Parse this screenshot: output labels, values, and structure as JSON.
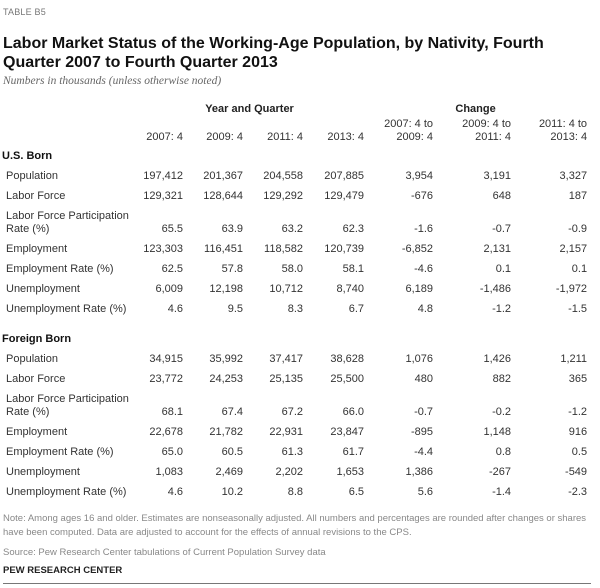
{
  "table_label": "TABLE B5",
  "title": "Labor Market Status of the Working-Age Population, by Nativity, Fourth Quarter 2007 to Fourth Quarter 2013",
  "subtitle": "Numbers in thousands (unless otherwise noted)",
  "group_headers": {
    "year": "Year and Quarter",
    "change": "Change"
  },
  "columns": [
    "2007: 4",
    "2009: 4",
    "2011: 4",
    "2013: 4",
    "2007: 4 to 2009: 4",
    "2009: 4 to 2011: 4",
    "2011: 4 to 2013: 4"
  ],
  "sections": [
    {
      "name": "U.S. Born",
      "rows": [
        {
          "label": "Population",
          "values": [
            "197,412",
            "201,367",
            "204,558",
            "207,885",
            "3,954",
            "3,191",
            "3,327"
          ]
        },
        {
          "label": "Labor Force",
          "values": [
            "129,321",
            "128,644",
            "129,292",
            "129,479",
            "-676",
            "648",
            "187"
          ]
        },
        {
          "label": "Labor Force Participation Rate (%)",
          "values": [
            "65.5",
            "63.9",
            "63.2",
            "62.3",
            "-1.6",
            "-0.7",
            "-0.9"
          ]
        },
        {
          "label": "Employment",
          "values": [
            "123,303",
            "116,451",
            "118,582",
            "120,739",
            "-6,852",
            "2,131",
            "2,157"
          ]
        },
        {
          "label": "Employment Rate (%)",
          "values": [
            "62.5",
            "57.8",
            "58.0",
            "58.1",
            "-4.6",
            "0.1",
            "0.1"
          ]
        },
        {
          "label": "Unemployment",
          "values": [
            "6,009",
            "12,198",
            "10,712",
            "8,740",
            "6,189",
            "-1,486",
            "-1,972"
          ]
        },
        {
          "label": "Unemployment Rate (%)",
          "values": [
            "4.6",
            "9.5",
            "8.3",
            "6.7",
            "4.8",
            "-1.2",
            "-1.5"
          ]
        }
      ]
    },
    {
      "name": "Foreign Born",
      "rows": [
        {
          "label": "Population",
          "values": [
            "34,915",
            "35,992",
            "37,417",
            "38,628",
            "1,076",
            "1,426",
            "1,211"
          ]
        },
        {
          "label": "Labor Force",
          "values": [
            "23,772",
            "24,253",
            "25,135",
            "25,500",
            "480",
            "882",
            "365"
          ]
        },
        {
          "label": "Labor Force Participation Rate (%)",
          "values": [
            "68.1",
            "67.4",
            "67.2",
            "66.0",
            "-0.7",
            "-0.2",
            "-1.2"
          ]
        },
        {
          "label": "Employment",
          "values": [
            "22,678",
            "21,782",
            "22,931",
            "23,847",
            "-895",
            "1,148",
            "916"
          ]
        },
        {
          "label": "Employment Rate (%)",
          "values": [
            "65.0",
            "60.5",
            "61.3",
            "61.7",
            "-4.4",
            "0.8",
            "0.5"
          ]
        },
        {
          "label": "Unemployment",
          "values": [
            "1,083",
            "2,469",
            "2,202",
            "1,653",
            "1,386",
            "-267",
            "-549"
          ]
        },
        {
          "label": "Unemployment Rate (%)",
          "values": [
            "4.6",
            "10.2",
            "8.8",
            "6.5",
            "5.6",
            "-1.4",
            "-2.3"
          ]
        }
      ]
    }
  ],
  "note": "Note: Among ages 16 and older. Estimates are nonseasonally adjusted. All numbers and percentages are rounded after changes or shares have been computed. Data are adjusted to account for the effects of annual revisions to the CPS.",
  "source": "Source: Pew Research Center tabulations of Current Population Survey data",
  "brand": "PEW RESEARCH CENTER"
}
